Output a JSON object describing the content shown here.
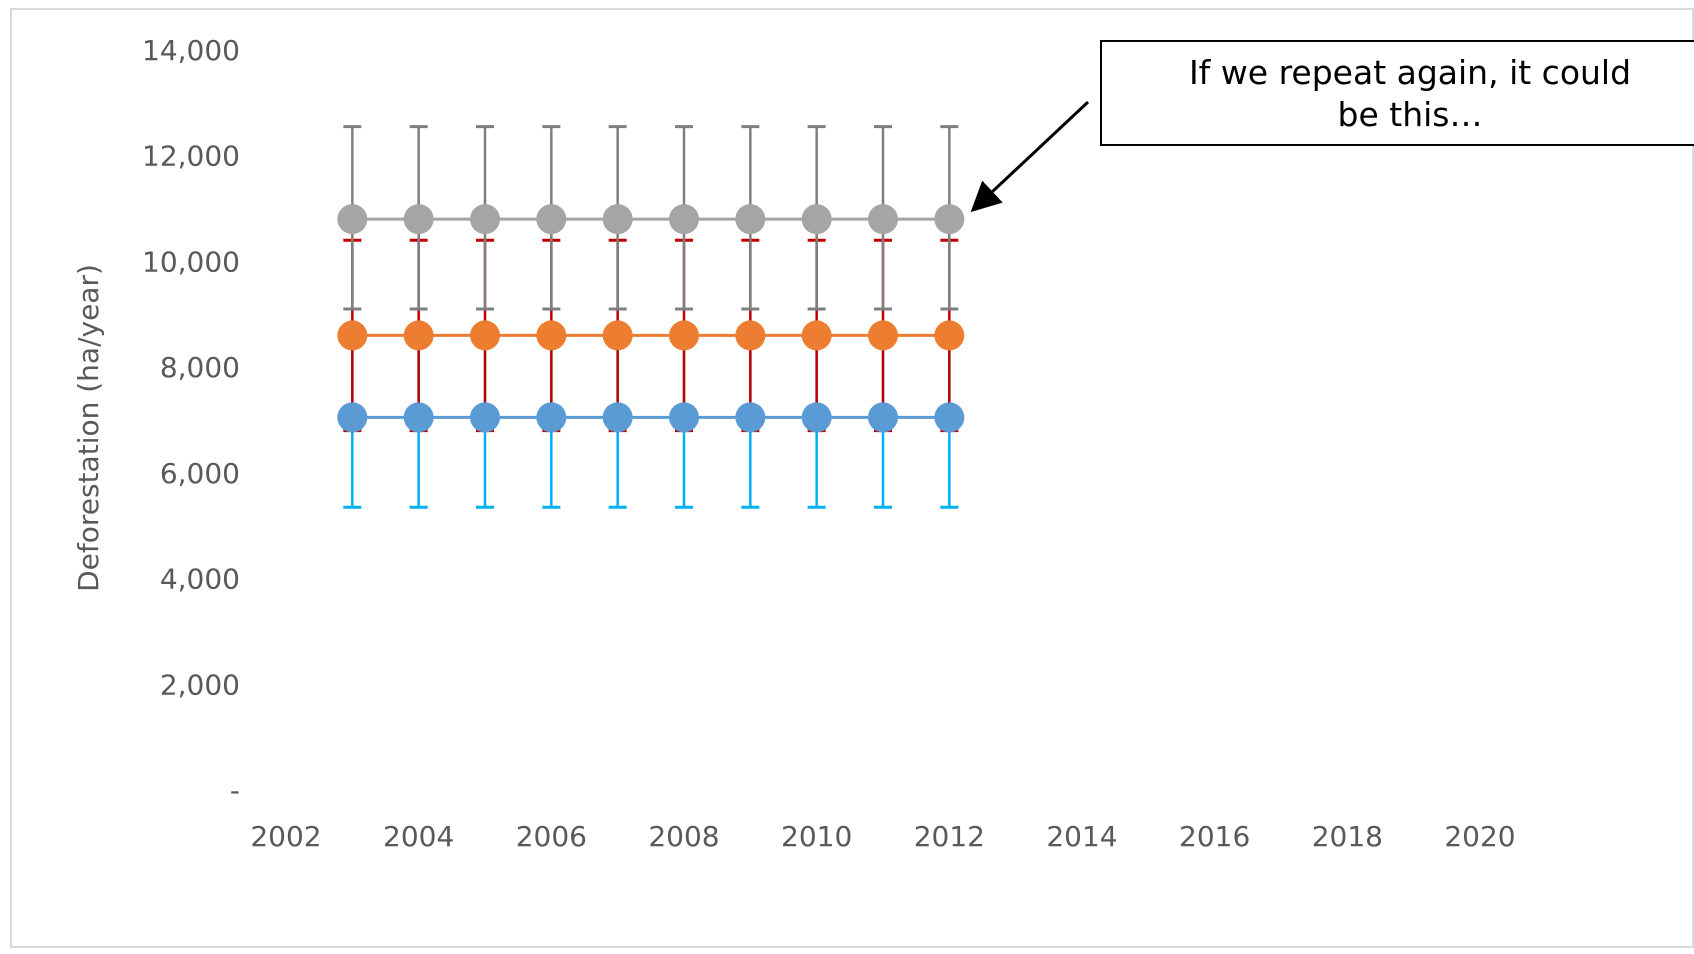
{
  "chart_data": {
    "type": "line",
    "title": "",
    "xlabel": "",
    "ylabel": "Deforestation (ha/year)",
    "xlim": [
      2002,
      2020
    ],
    "ylim": [
      0,
      14000
    ],
    "xticks": [
      2002,
      2004,
      2006,
      2008,
      2010,
      2012,
      2014,
      2016,
      2018,
      2020
    ],
    "yticks": [
      0,
      2000,
      4000,
      6000,
      8000,
      10000,
      12000,
      14000
    ],
    "ytick_labels": [
      "-",
      "2,000",
      "4,000",
      "6,000",
      "8,000",
      "10,000",
      "12,000",
      "14,000"
    ],
    "grid": false,
    "legend": "none",
    "x": [
      2003,
      2004,
      2005,
      2006,
      2007,
      2008,
      2009,
      2010,
      2011,
      2012
    ],
    "series": [
      {
        "color": "#5b9bd5",
        "error_color": "#00b0f0",
        "values": [
          7050,
          7050,
          7050,
          7050,
          7050,
          7050,
          7050,
          7050,
          7050,
          7050
        ],
        "error_low": [
          5350,
          5350,
          5350,
          5350,
          5350,
          5350,
          5350,
          5350,
          5350,
          5350
        ],
        "error_high": [
          8750,
          8750,
          8750,
          8750,
          8750,
          8750,
          8750,
          8750,
          8750,
          8750
        ]
      },
      {
        "color": "#ed7d31",
        "error_color": "#c00000",
        "values": [
          8600,
          8600,
          8600,
          8600,
          8600,
          8600,
          8600,
          8600,
          8600,
          8600
        ],
        "error_low": [
          6800,
          6800,
          6800,
          6800,
          6800,
          6800,
          6800,
          6800,
          6800,
          6800
        ],
        "error_high": [
          10400,
          10400,
          10400,
          10400,
          10400,
          10400,
          10400,
          10400,
          10400,
          10400
        ]
      },
      {
        "color": "#a5a5a5",
        "error_color": "#7f7f7f",
        "values": [
          10800,
          10800,
          10800,
          10800,
          10800,
          10800,
          10800,
          10800,
          10800,
          10800
        ],
        "error_low": [
          9100,
          9100,
          9100,
          9100,
          9100,
          9100,
          9100,
          9100,
          9100,
          9100
        ],
        "error_high": [
          12550,
          12550,
          12550,
          12550,
          12550,
          12550,
          12550,
          12550,
          12550,
          12550
        ]
      }
    ],
    "annotation": {
      "text": "If we repeat again, it could\nbe this…",
      "points_to_x": 2012,
      "points_to_y": 10800
    }
  }
}
